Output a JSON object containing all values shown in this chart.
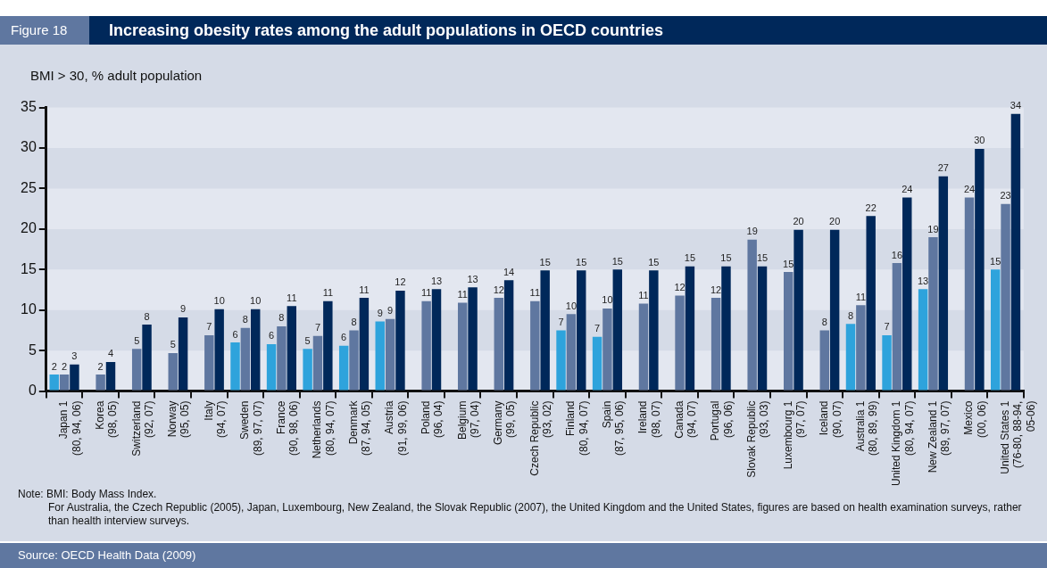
{
  "chart_data": {
    "type": "bar",
    "title": "Increasing obesity rates among the adult populations in OECD countries",
    "ylabel": "BMI > 30, % adult population",
    "categories": [
      "Japan 1\n(80, 94, 06)",
      "Korea\n(98, 05)",
      "Switzerland\n(92, 07)",
      "Norway\n(95, 05)",
      "Italy\n(94, 07)",
      "Sweden\n(89, 97, 07)",
      "France\n(90, 98, 06)",
      "Netherlands\n(80, 94, 07)",
      "Denmark\n(87, 94, 05)",
      "Austria\n(91, 99, 06)",
      "Poland\n(96, 04)",
      "Belgium\n(97, 04)",
      "Germany\n(99, 05)",
      "Czech Republic\n(93, 02)",
      "Finland\n(80, 94, 07)",
      "Spain\n(87, 95, 06)",
      "Ireland\n(98, 07)",
      "Canada\n(94, 07)",
      "Portugal\n(96, 06)",
      "Slovak Republic\n(93, 03)",
      "Luxembourg 1\n(97, 07)",
      "Iceland\n(90, 07)",
      "Australia 1\n(80, 89, 99)",
      "United Kingdom 1\n(80, 94, 07)",
      "New Zealand 1\n(89, 97, 07)",
      "Mexico\n(00, 06)",
      "United States 1\n(76-80, 88-94,\n05-06)"
    ],
    "series": [
      {
        "color": "#2ea3dc",
        "values": [
          2.05,
          null,
          null,
          null,
          null,
          6.0,
          5.8,
          5.2,
          5.6,
          8.6,
          null,
          null,
          null,
          null,
          7.5,
          6.7,
          null,
          null,
          null,
          null,
          null,
          null,
          8.3,
          6.9,
          12.6,
          null,
          15.0
        ],
        "value_labels": [
          "2",
          null,
          null,
          null,
          null,
          "6",
          "6",
          "5",
          "6",
          "9",
          null,
          null,
          null,
          null,
          "7",
          "7",
          null,
          null,
          null,
          null,
          null,
          null,
          "8",
          "7",
          "13",
          null,
          "15"
        ]
      },
      {
        "color": "#5f77a0",
        "values": [
          2.05,
          2.05,
          5.2,
          4.7,
          6.9,
          7.8,
          8.0,
          6.8,
          7.5,
          8.9,
          11.1,
          10.9,
          11.5,
          11.1,
          9.5,
          10.2,
          10.8,
          11.8,
          11.5,
          18.7,
          14.7,
          7.5,
          10.6,
          15.8,
          19.0,
          23.9,
          23.1
        ],
        "value_labels": [
          "2",
          "2",
          "5",
          "5",
          "7",
          "8",
          "8",
          "7",
          "8",
          "9",
          "11",
          "11",
          "12",
          "11",
          "10",
          "10",
          "11",
          "12",
          "12",
          "19",
          "15",
          "8",
          "11",
          "16",
          "19",
          "24",
          "23"
        ]
      },
      {
        "color": "#00285a",
        "values": [
          3.3,
          3.6,
          8.2,
          9.1,
          10.1,
          10.1,
          10.5,
          11.1,
          11.5,
          12.4,
          12.6,
          12.8,
          13.7,
          14.9,
          14.9,
          15.0,
          14.9,
          15.4,
          15.4,
          15.4,
          19.9,
          19.9,
          21.6,
          23.9,
          26.5,
          29.9,
          34.2
        ],
        "value_labels": [
          "3",
          "4",
          "8",
          "9",
          "10",
          "10",
          "11",
          "11",
          "11",
          "12",
          "13",
          "13",
          "14",
          "15",
          "15",
          "15",
          "15",
          "15",
          "15",
          "15",
          "20",
          "20",
          "22",
          "24",
          "27",
          "30",
          "34"
        ]
      }
    ],
    "ylim": [
      0,
      35
    ],
    "yticks": [
      0,
      5,
      10,
      15,
      20,
      25,
      30,
      35
    ],
    "annotations": [
      "Figure 18",
      "Note: BMI: Body Mass Index.",
      "For Australia, the Czech Republic (2005), Japan, Luxembourg, New Zealand, the Slovak Republic (2007), the United Kingdom and the United States, figures are based on health examination surveys, rather than health interview surveys.",
      "Source: OECD Health Data (2009)"
    ]
  }
}
